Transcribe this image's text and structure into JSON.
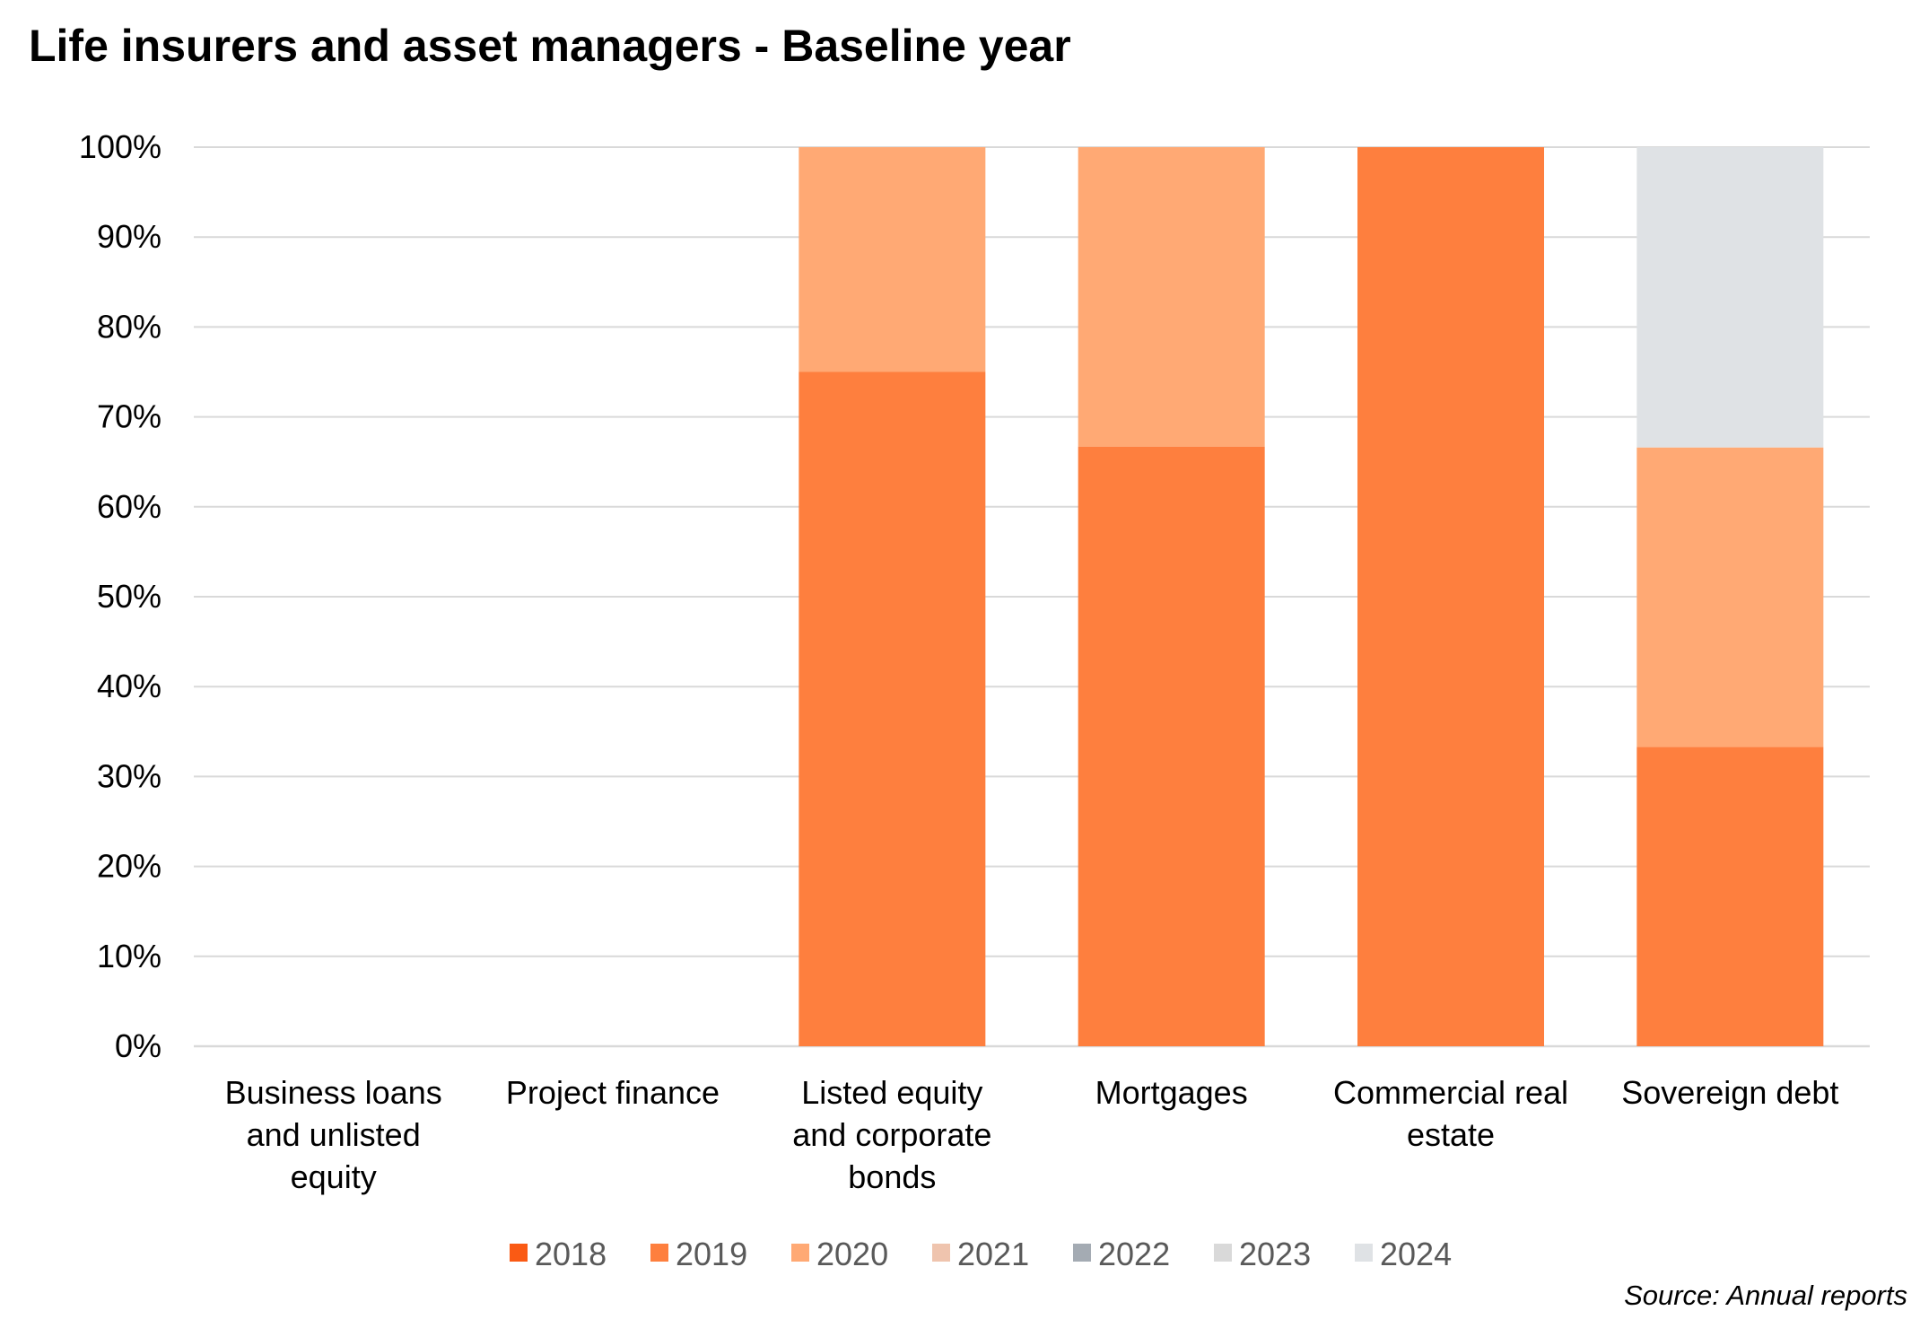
{
  "title": "Life insurers and asset managers - Baseline year",
  "source": "Source: Annual reports",
  "chart_data": {
    "type": "bar",
    "stacked": true,
    "title": "Life insurers and asset managers - Baseline year",
    "categories": [
      [
        "Business loans",
        "and unlisted",
        "equity"
      ],
      [
        "Project finance"
      ],
      [
        "Listed equity",
        "and corporate",
        "bonds"
      ],
      [
        "Mortgages"
      ],
      [
        "Commercial real",
        "estate"
      ],
      [
        "Sovereign debt"
      ]
    ],
    "series": [
      {
        "name": "2018",
        "color": "#FA5A14",
        "values": [
          0,
          0,
          0,
          0,
          0,
          0
        ]
      },
      {
        "name": "2019",
        "color": "#FE7F3E",
        "values": [
          0,
          0,
          75,
          66.7,
          100,
          33.3
        ]
      },
      {
        "name": "2020",
        "color": "#FFA974",
        "values": [
          0,
          0,
          25,
          33.3,
          0,
          33.3
        ]
      },
      {
        "name": "2021",
        "color": "#EFC4AE",
        "values": [
          0,
          0,
          0,
          0,
          0,
          0
        ]
      },
      {
        "name": "2022",
        "color": "#A4ABB3",
        "values": [
          0,
          0,
          0,
          0,
          0,
          0
        ]
      },
      {
        "name": "2023",
        "color": "#D9D9D9",
        "values": [
          0,
          0,
          0,
          0,
          0,
          0
        ]
      },
      {
        "name": "2024",
        "color": "#DFE2E5",
        "values": [
          0,
          0,
          0,
          0,
          0,
          33.4
        ]
      }
    ],
    "ylim": [
      0,
      100
    ],
    "yticks": [
      "0%",
      "10%",
      "20%",
      "30%",
      "40%",
      "50%",
      "60%",
      "70%",
      "80%",
      "90%",
      "100%"
    ],
    "grid": true,
    "legend_position": "bottom",
    "gridline_color": "#D9D9D9"
  }
}
